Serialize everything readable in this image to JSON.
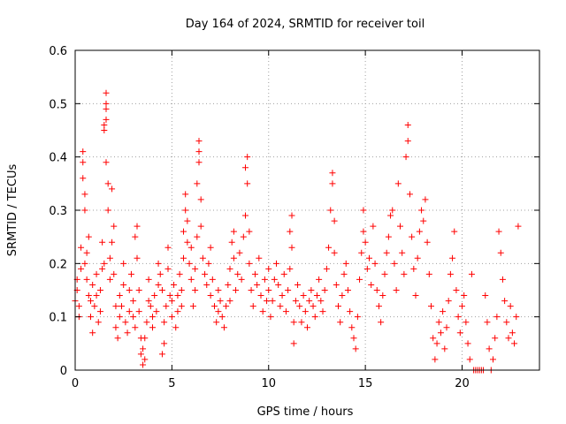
{
  "chart_data": {
    "type": "scatter",
    "title": "Day 164 of 2024, SRMTID for receiver toil",
    "xlabel": "GPS time / hours",
    "ylabel": "SRMTID / TECUs",
    "xlim": [
      0,
      24
    ],
    "ylim": [
      0,
      0.6
    ],
    "xticks": [
      0,
      5,
      10,
      15,
      20
    ],
    "xtick_labels": [
      "0",
      "5",
      "10",
      "15",
      "20"
    ],
    "yticks": [
      0,
      0.1,
      0.2,
      0.3,
      0.4,
      0.5,
      0.6
    ],
    "ytick_labels": [
      "0",
      "0.1",
      "0.2",
      "0.3",
      "0.4",
      "0.5",
      "0.6"
    ],
    "grid": true,
    "marker": "+",
    "series": [
      {
        "name": "SRMTID",
        "color": "#ff0000",
        "points": [
          [
            0.0,
            0.13
          ],
          [
            0.1,
            0.15
          ],
          [
            0.1,
            0.17
          ],
          [
            0.2,
            0.12
          ],
          [
            0.2,
            0.1
          ],
          [
            0.3,
            0.23
          ],
          [
            0.3,
            0.19
          ],
          [
            0.4,
            0.36
          ],
          [
            0.4,
            0.41
          ],
          [
            0.4,
            0.39
          ],
          [
            0.5,
            0.3
          ],
          [
            0.5,
            0.33
          ],
          [
            0.5,
            0.2
          ],
          [
            0.6,
            0.22
          ],
          [
            0.6,
            0.17
          ],
          [
            0.7,
            0.25
          ],
          [
            0.7,
            0.14
          ],
          [
            0.8,
            0.1
          ],
          [
            0.8,
            0.13
          ],
          [
            0.9,
            0.16
          ],
          [
            0.9,
            0.07
          ],
          [
            1.0,
            0.12
          ],
          [
            1.1,
            0.18
          ],
          [
            1.1,
            0.14
          ],
          [
            1.2,
            0.09
          ],
          [
            1.3,
            0.11
          ],
          [
            1.3,
            0.15
          ],
          [
            1.4,
            0.19
          ],
          [
            1.4,
            0.24
          ],
          [
            1.5,
            0.2
          ],
          [
            1.5,
            0.45
          ],
          [
            1.5,
            0.46
          ],
          [
            1.6,
            0.49
          ],
          [
            1.6,
            0.5
          ],
          [
            1.6,
            0.52
          ],
          [
            1.6,
            0.47
          ],
          [
            1.6,
            0.39
          ],
          [
            1.7,
            0.35
          ],
          [
            1.7,
            0.3
          ],
          [
            1.8,
            0.21
          ],
          [
            1.8,
            0.17
          ],
          [
            1.9,
            0.24
          ],
          [
            1.9,
            0.34
          ],
          [
            2.0,
            0.27
          ],
          [
            2.0,
            0.18
          ],
          [
            2.1,
            0.12
          ],
          [
            2.1,
            0.08
          ],
          [
            2.2,
            0.06
          ],
          [
            2.3,
            0.1
          ],
          [
            2.3,
            0.14
          ],
          [
            2.4,
            0.12
          ],
          [
            2.5,
            0.16
          ],
          [
            2.5,
            0.2
          ],
          [
            2.6,
            0.09
          ],
          [
            2.7,
            0.07
          ],
          [
            2.8,
            0.11
          ],
          [
            2.8,
            0.15
          ],
          [
            2.9,
            0.18
          ],
          [
            3.0,
            0.13
          ],
          [
            3.0,
            0.1
          ],
          [
            3.1,
            0.08
          ],
          [
            3.1,
            0.25
          ],
          [
            3.2,
            0.27
          ],
          [
            3.2,
            0.21
          ],
          [
            3.3,
            0.15
          ],
          [
            3.3,
            0.11
          ],
          [
            3.4,
            0.06
          ],
          [
            3.4,
            0.03
          ],
          [
            3.5,
            0.01
          ],
          [
            3.5,
            0.04
          ],
          [
            3.6,
            0.02
          ],
          [
            3.6,
            0.06
          ],
          [
            3.7,
            0.09
          ],
          [
            3.8,
            0.13
          ],
          [
            3.8,
            0.17
          ],
          [
            3.9,
            0.12
          ],
          [
            4.0,
            0.08
          ],
          [
            4.0,
            0.1
          ],
          [
            4.1,
            0.14
          ],
          [
            4.2,
            0.11
          ],
          [
            4.3,
            0.16
          ],
          [
            4.3,
            0.2
          ],
          [
            4.4,
            0.18
          ],
          [
            4.5,
            0.15
          ],
          [
            4.5,
            0.03
          ],
          [
            4.6,
            0.05
          ],
          [
            4.6,
            0.09
          ],
          [
            4.7,
            0.12
          ],
          [
            4.8,
            0.23
          ],
          [
            4.8,
            0.19
          ],
          [
            4.9,
            0.14
          ],
          [
            5.0,
            0.1
          ],
          [
            5.0,
            0.13
          ],
          [
            5.1,
            0.16
          ],
          [
            5.2,
            0.08
          ],
          [
            5.3,
            0.11
          ],
          [
            5.3,
            0.14
          ],
          [
            5.4,
            0.18
          ],
          [
            5.5,
            0.12
          ],
          [
            5.5,
            0.15
          ],
          [
            5.6,
            0.21
          ],
          [
            5.6,
            0.26
          ],
          [
            5.7,
            0.3
          ],
          [
            5.7,
            0.33
          ],
          [
            5.8,
            0.28
          ],
          [
            5.8,
            0.24
          ],
          [
            5.9,
            0.2
          ],
          [
            6.0,
            0.23
          ],
          [
            6.0,
            0.17
          ],
          [
            6.1,
            0.12
          ],
          [
            6.2,
            0.15
          ],
          [
            6.2,
            0.19
          ],
          [
            6.3,
            0.25
          ],
          [
            6.3,
            0.35
          ],
          [
            6.4,
            0.39
          ],
          [
            6.4,
            0.43
          ],
          [
            6.4,
            0.41
          ],
          [
            6.5,
            0.32
          ],
          [
            6.5,
            0.27
          ],
          [
            6.6,
            0.21
          ],
          [
            6.7,
            0.18
          ],
          [
            6.8,
            0.16
          ],
          [
            6.9,
            0.2
          ],
          [
            7.0,
            0.23
          ],
          [
            7.0,
            0.14
          ],
          [
            7.1,
            0.17
          ],
          [
            7.2,
            0.12
          ],
          [
            7.3,
            0.09
          ],
          [
            7.4,
            0.11
          ],
          [
            7.4,
            0.15
          ],
          [
            7.5,
            0.13
          ],
          [
            7.6,
            0.1
          ],
          [
            7.7,
            0.08
          ],
          [
            7.8,
            0.12
          ],
          [
            7.9,
            0.16
          ],
          [
            8.0,
            0.13
          ],
          [
            8.0,
            0.19
          ],
          [
            8.1,
            0.24
          ],
          [
            8.2,
            0.26
          ],
          [
            8.2,
            0.21
          ],
          [
            8.3,
            0.15
          ],
          [
            8.4,
            0.18
          ],
          [
            8.5,
            0.22
          ],
          [
            8.6,
            0.17
          ],
          [
            8.7,
            0.25
          ],
          [
            8.8,
            0.29
          ],
          [
            8.8,
            0.38
          ],
          [
            8.9,
            0.4
          ],
          [
            8.9,
            0.35
          ],
          [
            9.0,
            0.26
          ],
          [
            9.0,
            0.2
          ],
          [
            9.1,
            0.15
          ],
          [
            9.2,
            0.12
          ],
          [
            9.3,
            0.18
          ],
          [
            9.4,
            0.16
          ],
          [
            9.5,
            0.21
          ],
          [
            9.6,
            0.14
          ],
          [
            9.7,
            0.11
          ],
          [
            9.8,
            0.17
          ],
          [
            9.9,
            0.13
          ],
          [
            10.0,
            0.19
          ],
          [
            10.0,
            0.15
          ],
          [
            10.1,
            0.1
          ],
          [
            10.2,
            0.13
          ],
          [
            10.3,
            0.17
          ],
          [
            10.4,
            0.2
          ],
          [
            10.5,
            0.16
          ],
          [
            10.6,
            0.12
          ],
          [
            10.7,
            0.14
          ],
          [
            10.8,
            0.18
          ],
          [
            10.9,
            0.11
          ],
          [
            11.0,
            0.15
          ],
          [
            11.1,
            0.19
          ],
          [
            11.1,
            0.26
          ],
          [
            11.2,
            0.29
          ],
          [
            11.2,
            0.23
          ],
          [
            11.3,
            0.05
          ],
          [
            11.3,
            0.09
          ],
          [
            11.4,
            0.13
          ],
          [
            11.5,
            0.16
          ],
          [
            11.6,
            0.12
          ],
          [
            11.7,
            0.09
          ],
          [
            11.8,
            0.14
          ],
          [
            11.9,
            0.11
          ],
          [
            12.0,
            0.08
          ],
          [
            12.1,
            0.13
          ],
          [
            12.2,
            0.15
          ],
          [
            12.3,
            0.12
          ],
          [
            12.4,
            0.1
          ],
          [
            12.5,
            0.14
          ],
          [
            12.6,
            0.17
          ],
          [
            12.7,
            0.13
          ],
          [
            12.8,
            0.11
          ],
          [
            12.9,
            0.15
          ],
          [
            13.0,
            0.19
          ],
          [
            13.1,
            0.23
          ],
          [
            13.2,
            0.3
          ],
          [
            13.3,
            0.37
          ],
          [
            13.3,
            0.35
          ],
          [
            13.4,
            0.28
          ],
          [
            13.4,
            0.22
          ],
          [
            13.5,
            0.16
          ],
          [
            13.6,
            0.12
          ],
          [
            13.7,
            0.09
          ],
          [
            13.8,
            0.14
          ],
          [
            13.9,
            0.18
          ],
          [
            14.0,
            0.2
          ],
          [
            14.1,
            0.15
          ],
          [
            14.2,
            0.11
          ],
          [
            14.3,
            0.08
          ],
          [
            14.4,
            0.06
          ],
          [
            14.5,
            0.04
          ],
          [
            14.6,
            0.1
          ],
          [
            14.7,
            0.17
          ],
          [
            14.8,
            0.22
          ],
          [
            14.9,
            0.26
          ],
          [
            14.9,
            0.3
          ],
          [
            15.0,
            0.24
          ],
          [
            15.1,
            0.19
          ],
          [
            15.2,
            0.21
          ],
          [
            15.3,
            0.16
          ],
          [
            15.4,
            0.27
          ],
          [
            15.5,
            0.2
          ],
          [
            15.6,
            0.15
          ],
          [
            15.7,
            0.12
          ],
          [
            15.8,
            0.09
          ],
          [
            15.9,
            0.14
          ],
          [
            16.0,
            0.18
          ],
          [
            16.1,
            0.22
          ],
          [
            16.2,
            0.25
          ],
          [
            16.3,
            0.29
          ],
          [
            16.4,
            0.3
          ],
          [
            16.5,
            0.2
          ],
          [
            16.6,
            0.15
          ],
          [
            16.7,
            0.35
          ],
          [
            16.8,
            0.27
          ],
          [
            16.9,
            0.22
          ],
          [
            17.0,
            0.18
          ],
          [
            17.1,
            0.4
          ],
          [
            17.2,
            0.46
          ],
          [
            17.2,
            0.43
          ],
          [
            17.3,
            0.33
          ],
          [
            17.4,
            0.25
          ],
          [
            17.5,
            0.19
          ],
          [
            17.6,
            0.14
          ],
          [
            17.7,
            0.21
          ],
          [
            17.8,
            0.26
          ],
          [
            17.9,
            0.3
          ],
          [
            18.0,
            0.28
          ],
          [
            18.1,
            0.32
          ],
          [
            18.2,
            0.24
          ],
          [
            18.3,
            0.18
          ],
          [
            18.4,
            0.12
          ],
          [
            18.5,
            0.06
          ],
          [
            18.6,
            0.02
          ],
          [
            18.7,
            0.05
          ],
          [
            18.8,
            0.09
          ],
          [
            18.9,
            0.07
          ],
          [
            19.0,
            0.11
          ],
          [
            19.1,
            0.04
          ],
          [
            19.2,
            0.08
          ],
          [
            19.3,
            0.13
          ],
          [
            19.4,
            0.18
          ],
          [
            19.5,
            0.21
          ],
          [
            19.6,
            0.26
          ],
          [
            19.7,
            0.15
          ],
          [
            19.8,
            0.1
          ],
          [
            19.9,
            0.07
          ],
          [
            20.0,
            0.12
          ],
          [
            20.1,
            0.14
          ],
          [
            20.2,
            0.09
          ],
          [
            20.3,
            0.05
          ],
          [
            20.4,
            0.02
          ],
          [
            20.5,
            0.18
          ],
          [
            20.6,
            0.0
          ],
          [
            20.7,
            0.0
          ],
          [
            20.8,
            0.0
          ],
          [
            20.9,
            0.0
          ],
          [
            21.0,
            0.0
          ],
          [
            21.1,
            0.0
          ],
          [
            21.2,
            0.14
          ],
          [
            21.3,
            0.09
          ],
          [
            21.4,
            0.04
          ],
          [
            21.5,
            0.0
          ],
          [
            21.6,
            0.02
          ],
          [
            21.7,
            0.06
          ],
          [
            21.8,
            0.1
          ],
          [
            21.9,
            0.26
          ],
          [
            22.0,
            0.22
          ],
          [
            22.1,
            0.17
          ],
          [
            22.2,
            0.13
          ],
          [
            22.3,
            0.09
          ],
          [
            22.4,
            0.06
          ],
          [
            22.5,
            0.12
          ],
          [
            22.6,
            0.07
          ],
          [
            22.7,
            0.05
          ],
          [
            22.8,
            0.1
          ],
          [
            22.9,
            0.27
          ]
        ]
      }
    ]
  }
}
